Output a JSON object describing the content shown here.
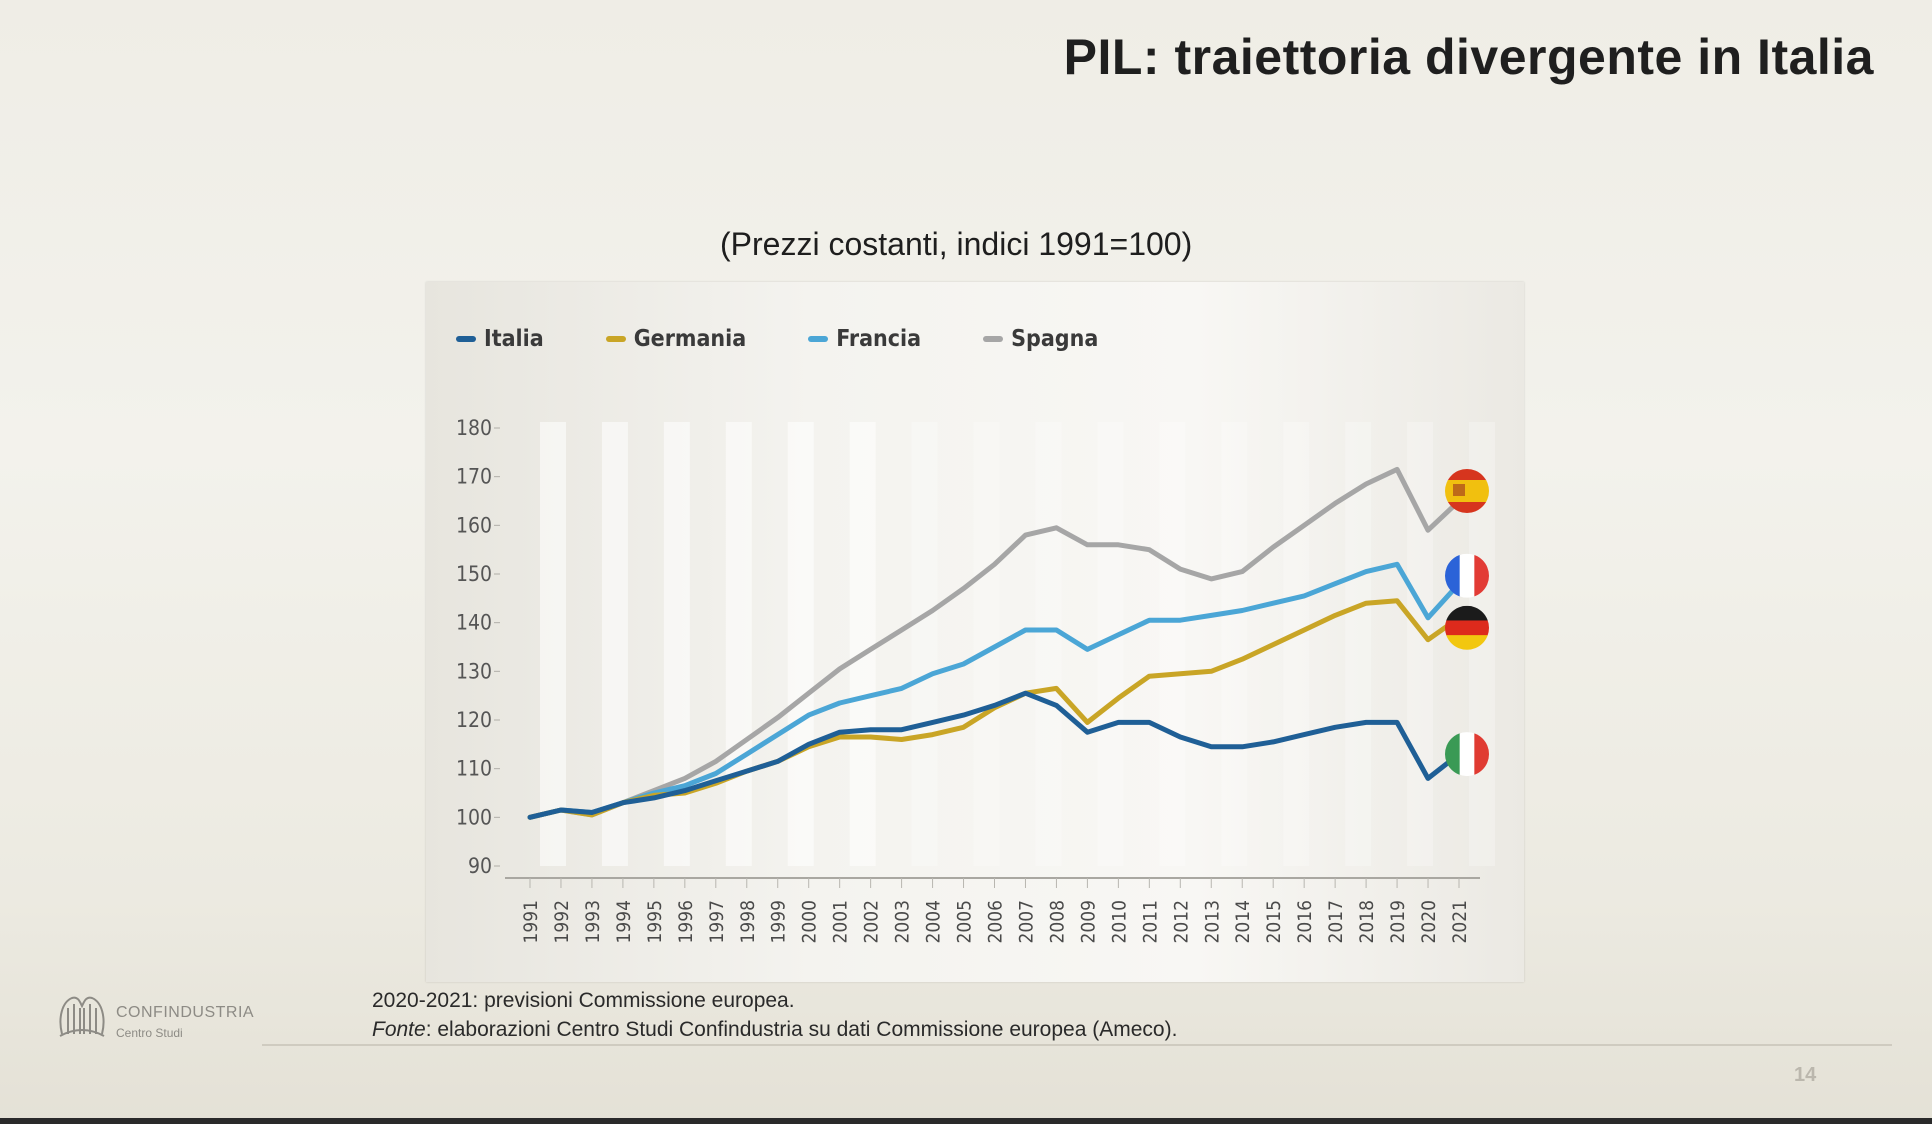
{
  "slide": {
    "title": "PIL: traiettoria divergente in Italia",
    "subtitle": "(Prezzi costanti, indici 1991=100)",
    "notes": {
      "forecast_note": "2020-2021: previsioni Commissione europea.",
      "source_label": "Fonte",
      "source_text": ": elaborazioni Centro Studi Confindustria su dati Commissione europea (Ameco)."
    },
    "logo": {
      "name": "CONFINDUSTRIA",
      "sub": "Centro Studi"
    },
    "page_number": "14"
  },
  "chart_data": {
    "type": "line",
    "title": "",
    "xlabel": "",
    "ylabel": "",
    "ylim": [
      90,
      180
    ],
    "yticks": [
      90,
      100,
      110,
      120,
      130,
      140,
      150,
      160,
      170,
      180
    ],
    "legend_position": "top-left",
    "grid": false,
    "x": [
      "1991",
      "1992",
      "1993",
      "1994",
      "1995",
      "1996",
      "1997",
      "1998",
      "1999",
      "2000",
      "2001",
      "2002",
      "2003",
      "2004",
      "2005",
      "2006",
      "2007",
      "2008",
      "2009",
      "2010",
      "2011",
      "2012",
      "2013",
      "2014",
      "2015",
      "2016",
      "2017",
      "2018",
      "2019",
      "2020",
      "2021"
    ],
    "series": [
      {
        "name": "Italia",
        "color": "#1f5f96",
        "flag": "italy",
        "values": [
          100,
          101.5,
          101,
          103,
          104,
          105.5,
          107.5,
          109.5,
          111.5,
          115,
          117.5,
          118,
          118,
          119.5,
          121,
          123,
          125.5,
          123,
          117.5,
          119.5,
          119.5,
          116.5,
          114.5,
          114.5,
          115.5,
          117,
          118.5,
          119.5,
          119.5,
          108,
          113
        ]
      },
      {
        "name": "Germania",
        "color": "#c9a526",
        "flag": "germany",
        "values": [
          100,
          101.5,
          100.5,
          103,
          104.5,
          105,
          107,
          109.5,
          111.5,
          114.5,
          116.5,
          116.5,
          116,
          117,
          118.5,
          122.5,
          125.5,
          126.5,
          119.5,
          124.5,
          129,
          129.5,
          130,
          132.5,
          135.5,
          138.5,
          141.5,
          144,
          144.5,
          136.5,
          141
        ]
      },
      {
        "name": "Francia",
        "color": "#4ba6d6",
        "flag": "france",
        "values": [
          100,
          101.5,
          101,
          103,
          105,
          106.5,
          109,
          113,
          117,
          121,
          123.5,
          125,
          126.5,
          129.5,
          131.5,
          135,
          138.5,
          138.5,
          134.5,
          137.5,
          140.5,
          140.5,
          141.5,
          142.5,
          144,
          145.5,
          148,
          150.5,
          152,
          141,
          148
        ]
      },
      {
        "name": "Spagna",
        "color": "#a6a6a6",
        "flag": "spain",
        "values": [
          100,
          101.5,
          100.5,
          103,
          105.5,
          108,
          111.5,
          116,
          120.5,
          125.5,
          130.5,
          134.5,
          138.5,
          142.5,
          147,
          152,
          158,
          159.5,
          156,
          156,
          155,
          151,
          149,
          150.5,
          155.5,
          160,
          164.5,
          168.5,
          171.5,
          159,
          165
        ]
      }
    ]
  }
}
